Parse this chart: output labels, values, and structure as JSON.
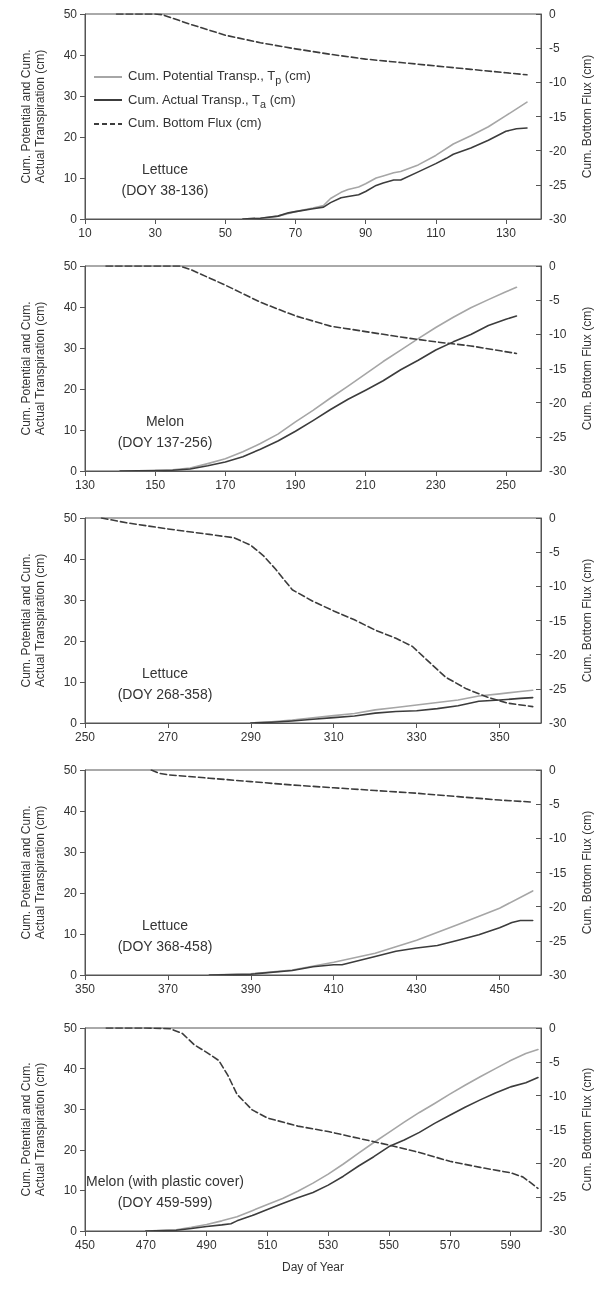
{
  "chart_data": [
    {
      "type": "line",
      "ylabel": "Cum. Potential and Cum.\nActual Transpiration (cm)",
      "y2label": "Cum. Bottom Flux (cm)",
      "annotations": [
        "Lettuce",
        "(DOY 38-136)"
      ],
      "xlim": [
        10,
        140
      ],
      "xticks": [
        10,
        30,
        50,
        70,
        90,
        110,
        130
      ],
      "ylim": [
        0,
        50
      ],
      "yticks": [
        0,
        10,
        20,
        30,
        40,
        50
      ],
      "y2lim": [
        -30,
        0
      ],
      "y2ticks": [
        -30,
        -25,
        -20,
        -15,
        -10,
        -5,
        0
      ],
      "grid": false,
      "legend": "top left",
      "marker": "none",
      "series": [
        {
          "name": "Cum. Potential Transp., T$_{p}$ (cm)",
          "color": "#a6a6a6",
          "line_style": "solid",
          "x": [
            55,
            60,
            65,
            70,
            75,
            78,
            80,
            83,
            85,
            88,
            90,
            93,
            95,
            98,
            100,
            105,
            110,
            115,
            120,
            125,
            130,
            136
          ],
          "values": [
            0,
            0.2,
            0.7,
            1.8,
            2.7,
            3.3,
            5,
            6.5,
            7.2,
            7.8,
            8.6,
            10,
            10.5,
            11.3,
            11.6,
            13.2,
            15.5,
            18.3,
            20.3,
            22.5,
            25.2,
            28.5
          ]
        },
        {
          "name": "Cum. Actual Transp., T$_{a}$ (cm)",
          "color": "#3c3c3c",
          "line_style": "solid",
          "x": [
            55,
            60,
            65,
            68,
            70,
            75,
            78,
            80,
            83,
            85,
            88,
            90,
            93,
            95,
            98,
            100,
            105,
            110,
            113,
            115,
            120,
            125,
            130,
            133,
            136
          ],
          "values": [
            0,
            0.2,
            0.7,
            1.5,
            1.8,
            2.5,
            2.9,
            4,
            5.2,
            5.5,
            5.9,
            6.7,
            8.2,
            8.8,
            9.5,
            9.5,
            11.5,
            13.5,
            14.8,
            15.8,
            17.3,
            19.2,
            21.4,
            22,
            22.2
          ]
        },
        {
          "name": "Cum. Bottom Flux (cm)",
          "color": "#3c3c3c",
          "line_style": "dashed",
          "axis": "y2",
          "x": [
            19,
            30,
            32,
            40,
            50,
            60,
            70,
            80,
            90,
            100,
            110,
            120,
            130,
            136
          ],
          "values": [
            0,
            0,
            -0.1,
            -1.5,
            -3.1,
            -4.2,
            -5.1,
            -5.9,
            -6.6,
            -7.1,
            -7.6,
            -8.1,
            -8.6,
            -8.9
          ]
        }
      ]
    },
    {
      "type": "line",
      "ylabel": "Cum. Potential and Cum.\nActual Transpiration (cm)",
      "y2label": "Cum. Bottom Flux (cm)",
      "annotations": [
        "Melon",
        "(DOY 137-256)"
      ],
      "xlim": [
        130,
        260
      ],
      "xticks": [
        130,
        150,
        170,
        190,
        210,
        230,
        250
      ],
      "ylim": [
        0,
        50
      ],
      "yticks": [
        0,
        10,
        20,
        30,
        40,
        50
      ],
      "y2lim": [
        -30,
        0
      ],
      "y2ticks": [
        -30,
        -25,
        -20,
        -15,
        -10,
        -5,
        0
      ],
      "grid": false,
      "legend": false,
      "marker": "none",
      "series": [
        {
          "color": "#a6a6a6",
          "line_style": "solid",
          "x": [
            140,
            150,
            155,
            160,
            165,
            170,
            175,
            180,
            185,
            190,
            195,
            200,
            205,
            210,
            215,
            220,
            225,
            230,
            235,
            240,
            245,
            250,
            253
          ],
          "values": [
            0,
            0.1,
            0.3,
            0.7,
            1.8,
            3,
            4.7,
            6.7,
            9,
            12,
            14.8,
            17.8,
            20.7,
            23.7,
            26.7,
            29.5,
            32.3,
            35,
            37.5,
            39.8,
            41.8,
            43.7,
            44.8
          ]
        },
        {
          "color": "#3c3c3c",
          "line_style": "solid",
          "x": [
            140,
            150,
            155,
            160,
            165,
            170,
            175,
            180,
            185,
            190,
            195,
            200,
            205,
            210,
            215,
            220,
            225,
            230,
            235,
            240,
            245,
            250,
            253
          ],
          "values": [
            0,
            0.1,
            0.2,
            0.5,
            1.3,
            2.2,
            3.5,
            5.3,
            7.3,
            9.7,
            12.3,
            15,
            17.5,
            19.7,
            22,
            24.7,
            27,
            29.5,
            31.5,
            33.3,
            35.5,
            37,
            37.8
          ]
        },
        {
          "color": "#3c3c3c",
          "line_style": "dashed",
          "axis": "y2",
          "x": [
            136,
            150,
            157,
            160,
            170,
            180,
            190,
            200,
            210,
            220,
            230,
            240,
            253
          ],
          "values": [
            0,
            0,
            0,
            -0.5,
            -2.8,
            -5.3,
            -7.3,
            -8.8,
            -9.6,
            -10.4,
            -11.1,
            -11.7,
            -12.8
          ]
        }
      ]
    },
    {
      "type": "line",
      "ylabel": "Cum. Potential and Cum.\nActual Transpiration (cm)",
      "y2label": "Cum. Bottom Flux (cm)",
      "annotations": [
        "Lettuce",
        "(DOY 268-358)"
      ],
      "xlim": [
        250,
        360
      ],
      "xticks": [
        250,
        270,
        290,
        310,
        330,
        350
      ],
      "ylim": [
        0,
        50
      ],
      "yticks": [
        0,
        10,
        20,
        30,
        40,
        50
      ],
      "y2lim": [
        -30,
        0
      ],
      "y2ticks": [
        -30,
        -25,
        -20,
        -15,
        -10,
        -5,
        0
      ],
      "grid": false,
      "legend": false,
      "marker": "none",
      "series": [
        {
          "color": "#a6a6a6",
          "line_style": "solid",
          "x": [
            290,
            295,
            300,
            305,
            310,
            315,
            320,
            325,
            330,
            335,
            340,
            345,
            350,
            355,
            358
          ],
          "values": [
            0,
            0.3,
            0.7,
            1.3,
            1.8,
            2.3,
            3.2,
            3.8,
            4.4,
            5,
            5.6,
            6.6,
            7.1,
            7.7,
            8
          ]
        },
        {
          "color": "#3c3c3c",
          "line_style": "solid",
          "x": [
            290,
            295,
            300,
            305,
            310,
            315,
            320,
            325,
            330,
            335,
            340,
            345,
            350,
            355,
            358
          ],
          "values": [
            0,
            0.2,
            0.5,
            0.9,
            1.3,
            1.7,
            2.4,
            2.8,
            3,
            3.5,
            4.2,
            5.3,
            5.6,
            6,
            6.2
          ]
        },
        {
          "color": "#3c3c3c",
          "line_style": "dashed",
          "axis": "y2",
          "x": [
            254,
            260,
            270,
            280,
            286,
            290,
            293,
            296,
            300,
            305,
            310,
            315,
            320,
            325,
            329,
            332,
            337,
            342,
            347,
            352,
            358
          ],
          "values": [
            0,
            -0.7,
            -1.6,
            -2.4,
            -2.9,
            -4,
            -5.5,
            -7.5,
            -10.5,
            -12.2,
            -13.6,
            -14.9,
            -16.4,
            -17.6,
            -18.8,
            -20.5,
            -23.3,
            -25,
            -26.2,
            -27.1,
            -27.6
          ]
        }
      ]
    },
    {
      "type": "line",
      "ylabel": "Cum. Potential and Cum.\nActual Transpiration (cm)",
      "y2label": "Cum. Bottom Flux (cm)",
      "annotations": [
        "Lettuce",
        "(DOY 368-458)"
      ],
      "xlim": [
        350,
        460
      ],
      "xticks": [
        350,
        370,
        390,
        410,
        430,
        450
      ],
      "ylim": [
        0,
        50
      ],
      "yticks": [
        0,
        10,
        20,
        30,
        40,
        50
      ],
      "y2lim": [
        -30,
        0
      ],
      "y2ticks": [
        -30,
        -25,
        -20,
        -15,
        -10,
        -5,
        0
      ],
      "grid": false,
      "legend": false,
      "marker": "none",
      "series": [
        {
          "color": "#a6a6a6",
          "line_style": "solid",
          "x": [
            380,
            390,
            400,
            410,
            420,
            430,
            440,
            450,
            458
          ],
          "values": [
            0,
            0.3,
            1.2,
            3.1,
            5.3,
            8.5,
            12.3,
            16.3,
            20.5
          ]
        },
        {
          "color": "#3c3c3c",
          "line_style": "solid",
          "x": [
            380,
            390,
            400,
            405,
            410,
            412,
            420,
            425,
            430,
            435,
            440,
            445,
            450,
            453,
            455,
            458
          ],
          "values": [
            0,
            0.2,
            1.1,
            2,
            2.5,
            2.5,
            4.5,
            5.8,
            6.6,
            7.2,
            8.5,
            9.8,
            11.5,
            12.8,
            13.3,
            13.3
          ]
        },
        {
          "color": "#3c3c3c",
          "line_style": "dashed",
          "axis": "y2",
          "x": [
            366,
            368,
            370,
            380,
            390,
            400,
            410,
            420,
            430,
            440,
            450,
            458
          ],
          "values": [
            0,
            -0.5,
            -0.7,
            -1.2,
            -1.7,
            -2.2,
            -2.6,
            -3,
            -3.4,
            -3.9,
            -4.4,
            -4.7
          ]
        }
      ]
    },
    {
      "type": "line",
      "xlabel": "Day of Year",
      "ylabel": "Cum. Potential and Cum.\nActual Transpiration (cm)",
      "y2label": "Cum. Bottom Flux (cm)",
      "annotations": [
        "Melon (with plastic cover)",
        "(DOY 459-599)"
      ],
      "xlim": [
        450,
        600
      ],
      "xticks": [
        450,
        470,
        490,
        510,
        530,
        550,
        570,
        590
      ],
      "ylim": [
        0,
        50
      ],
      "yticks": [
        0,
        10,
        20,
        30,
        40,
        50
      ],
      "y2lim": [
        -30,
        0
      ],
      "y2ticks": [
        -30,
        -25,
        -20,
        -15,
        -10,
        -5,
        0
      ],
      "grid": false,
      "legend": false,
      "marker": "none",
      "series": [
        {
          "color": "#a6a6a6",
          "line_style": "solid",
          "x": [
            470,
            480,
            485,
            490,
            495,
            500,
            505,
            510,
            515,
            520,
            525,
            530,
            535,
            540,
            545,
            550,
            555,
            560,
            565,
            570,
            575,
            580,
            585,
            590,
            595,
            599
          ],
          "values": [
            0,
            0.3,
            0.9,
            1.6,
            2.5,
            3.5,
            5,
            6.5,
            8,
            9.8,
            11.8,
            14,
            16.5,
            19.2,
            21.8,
            24.3,
            26.8,
            29.2,
            31.4,
            33.7,
            35.9,
            38,
            40,
            42,
            43.7,
            44.7
          ]
        },
        {
          "color": "#3c3c3c",
          "line_style": "solid",
          "x": [
            470,
            480,
            485,
            490,
            495,
            498,
            500,
            505,
            510,
            515,
            520,
            525,
            530,
            535,
            540,
            545,
            550,
            555,
            560,
            565,
            570,
            575,
            580,
            585,
            590,
            595,
            599
          ],
          "values": [
            0,
            0.2,
            0.6,
            1.1,
            1.5,
            1.8,
            2.5,
            3.8,
            5.3,
            6.8,
            8.2,
            9.5,
            11.3,
            13.5,
            16,
            18.3,
            20.8,
            22.4,
            24.3,
            26.5,
            28.5,
            30.5,
            32.3,
            34,
            35.5,
            36.5,
            37.8
          ]
        },
        {
          "color": "#3c3c3c",
          "line_style": "dashed",
          "axis": "y2",
          "x": [
            457,
            470,
            478,
            482,
            486,
            490,
            494,
            497,
            500,
            505,
            510,
            520,
            530,
            540,
            550,
            560,
            570,
            580,
            590,
            594,
            597,
            599
          ],
          "values": [
            0,
            0,
            -0.1,
            -0.8,
            -2.5,
            -3.6,
            -4.8,
            -7,
            -9.8,
            -12.1,
            -13.3,
            -14.5,
            -15.3,
            -16.3,
            -17.3,
            -18.4,
            -19.7,
            -20.6,
            -21.4,
            -22,
            -23,
            -23.7
          ]
        }
      ]
    }
  ]
}
